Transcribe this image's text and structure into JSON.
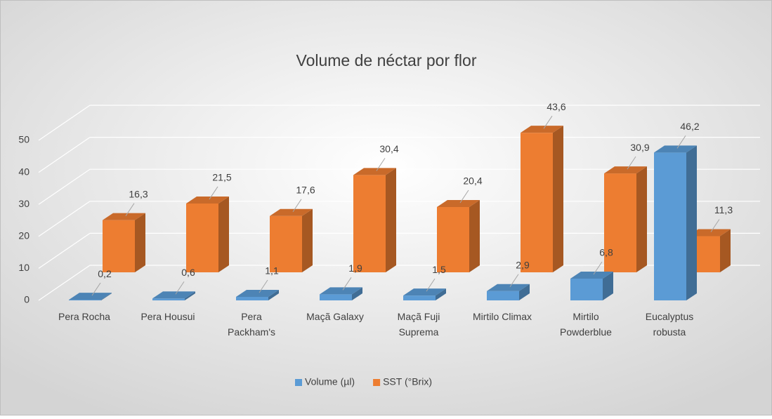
{
  "chart_data": {
    "type": "bar3d",
    "title": "Volume de néctar por flor",
    "categories": [
      "Pera Rocha",
      "Pera Housui",
      "Pera\nPackham's",
      "Maçã Galaxy",
      "Maçã Fuji\nSuprema",
      "Mirtilo Climax",
      "Mirtilo\nPowderblue",
      "Eucalyptus\nrobusta"
    ],
    "series": [
      {
        "name": "Volume (µl)",
        "color": "#5b9bd5",
        "values": [
          0.2,
          0.6,
          1.1,
          1.9,
          1.5,
          2.9,
          6.8,
          46.2
        ],
        "value_labels": [
          "0,2",
          "0,6",
          "1,1",
          "1,9",
          "1,5",
          "2,9",
          "6,8",
          "46,2"
        ]
      },
      {
        "name": "SST (°Brix)",
        "color": "#ed7d31",
        "values": [
          16.3,
          21.5,
          17.6,
          30.4,
          20.4,
          43.6,
          30.9,
          11.3
        ],
        "value_labels": [
          "16,3",
          "21,5",
          "17,6",
          "30,4",
          "20,4",
          "43,6",
          "30,9",
          "11,3"
        ]
      }
    ],
    "ylim": [
      0,
      50
    ],
    "yticks": [
      0,
      10,
      20,
      30,
      40,
      50
    ],
    "grid": true,
    "legend": "bottom"
  }
}
